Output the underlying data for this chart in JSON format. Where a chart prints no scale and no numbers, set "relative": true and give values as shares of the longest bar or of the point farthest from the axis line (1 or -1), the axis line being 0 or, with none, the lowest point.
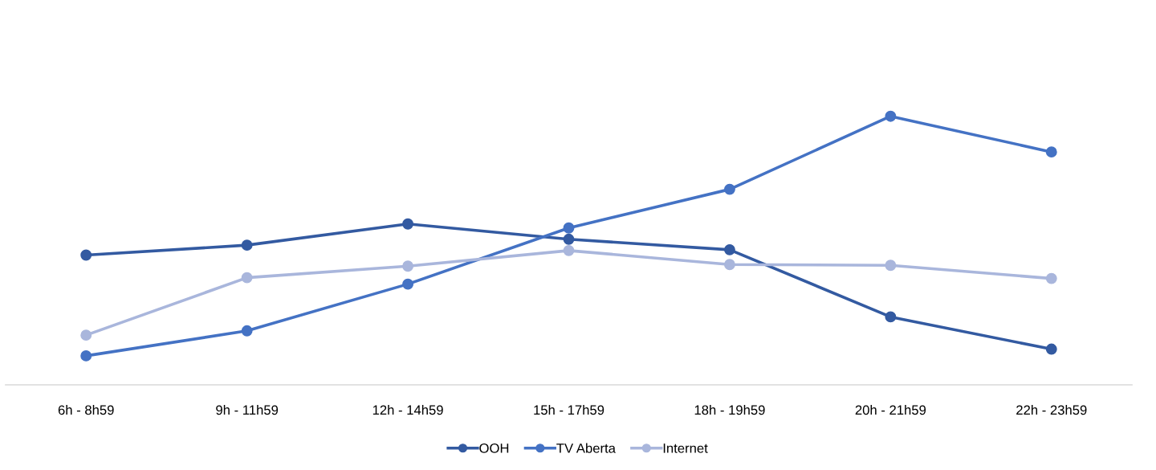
{
  "chart_data": {
    "type": "line",
    "relative": true,
    "categories": [
      "6h - 8h59",
      "9h - 11h59",
      "12h - 14h59",
      "15h - 17h59",
      "18h - 19h59",
      "20h - 21h59",
      "22h - 23h59"
    ],
    "series": [
      {
        "name": "OOH",
        "color": "#335aa1",
        "values": [
          0.483,
          0.52,
          0.599,
          0.542,
          0.503,
          0.253,
          0.133
        ]
      },
      {
        "name": "TV Aberta",
        "color": "#4472c4",
        "values": [
          0.108,
          0.201,
          0.375,
          0.584,
          0.728,
          1.0,
          0.867
        ]
      },
      {
        "name": "Internet",
        "color": "#a9b6dc",
        "values": [
          0.185,
          0.399,
          0.442,
          0.5,
          0.448,
          0.445,
          0.396
        ]
      }
    ],
    "marker": "circle",
    "line_style": "solid",
    "legend": "bottom",
    "tick_labels": "x"
  }
}
